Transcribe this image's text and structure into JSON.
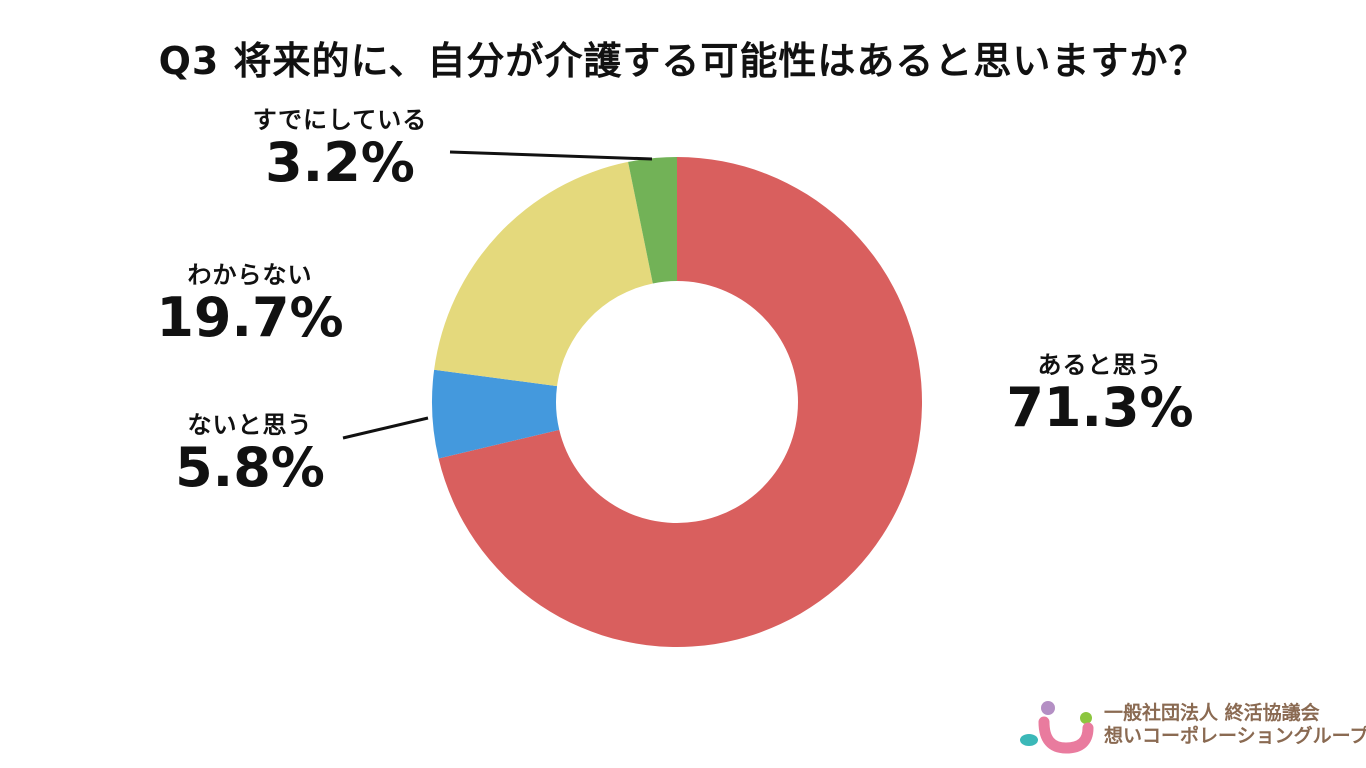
{
  "chart_data": {
    "type": "pie",
    "title": "Q3 将来的に、自分が介護する可能性はあると思いますか？",
    "slices": [
      {
        "label": "あると思う",
        "value": 71.3,
        "display": "71.3%",
        "color": "#d95f5e"
      },
      {
        "label": "ないと思う",
        "value": 5.8,
        "display": "5.8%",
        "color": "#4499dd"
      },
      {
        "label": "わからない",
        "value": 19.7,
        "display": "19.7%",
        "color": "#e4d97c"
      },
      {
        "label": "すでにしている",
        "value": 3.2,
        "display": "3.2%",
        "color": "#72b257"
      }
    ],
    "donut": true,
    "start": "12 o'clock",
    "direction": "clockwise"
  },
  "logo": {
    "line1": "一般社団法人 終活協議会",
    "line2": "想いコーポレーショングループ",
    "colors": {
      "purple": "#b48fc4",
      "green": "#8cc63f",
      "teal": "#3bb8b8",
      "pink": "#e97b9e",
      "text": "#8a6a52"
    }
  }
}
